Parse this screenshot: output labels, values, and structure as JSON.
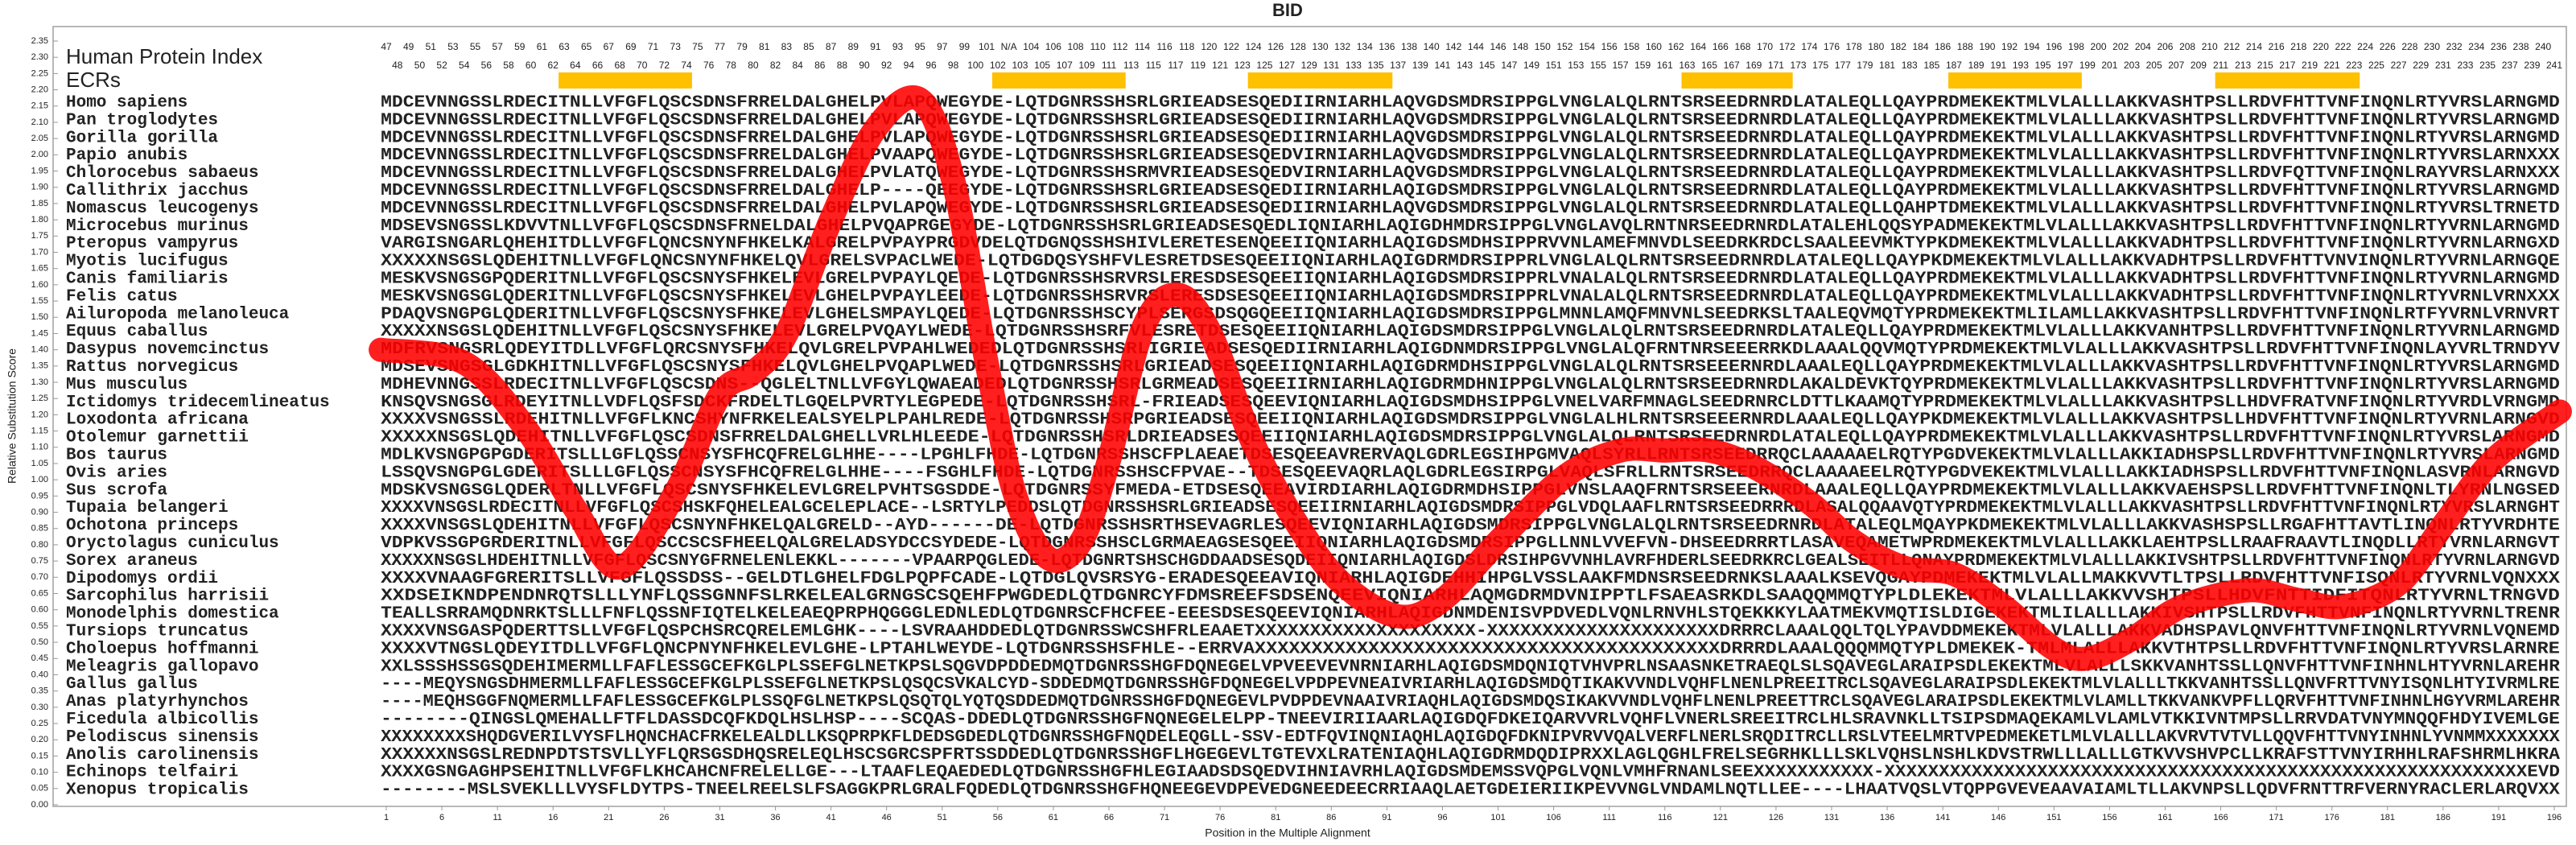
{
  "chart_data": {
    "type": "line",
    "title": "BID",
    "xlabel": "Position in the Multiple Alignment",
    "ylabel": "Relative Substitution Score",
    "xlim": [
      1,
      196
    ],
    "ylim": [
      0,
      2.35
    ],
    "xticks": [
      1,
      6,
      11,
      16,
      21,
      26,
      31,
      36,
      41,
      46,
      51,
      56,
      61,
      66,
      71,
      76,
      81,
      86,
      91,
      96,
      101,
      106,
      111,
      116,
      121,
      126,
      131,
      136,
      141,
      146,
      151,
      156,
      161,
      166,
      171,
      176,
      181,
      186,
      191,
      196
    ],
    "yticks": [
      {
        "value": 0,
        "label": "0.00"
      },
      {
        "value": 0.05,
        "label": "0.05"
      },
      {
        "value": 0.1,
        "label": "0.10"
      },
      {
        "value": 0.15,
        "label": "0.15"
      },
      {
        "value": 0.2,
        "label": "0.20"
      },
      {
        "value": 0.25,
        "label": "0.25"
      },
      {
        "value": 0.3,
        "label": "0.30"
      },
      {
        "value": 0.35,
        "label": "0.35"
      },
      {
        "value": 0.4,
        "label": "0.40"
      },
      {
        "value": 0.45,
        "label": "0.45"
      },
      {
        "value": 0.5,
        "label": "0.50"
      },
      {
        "value": 0.55,
        "label": "0.55"
      },
      {
        "value": 0.6,
        "label": "0.60"
      },
      {
        "value": 0.65,
        "label": "0.65"
      },
      {
        "value": 0.7,
        "label": "0.70"
      },
      {
        "value": 0.75,
        "label": "0.75"
      },
      {
        "value": 0.8,
        "label": "0.80"
      },
      {
        "value": 0.85,
        "label": "0.85"
      },
      {
        "value": 0.9,
        "label": "0.90"
      },
      {
        "value": 0.95,
        "label": "0.95"
      },
      {
        "value": 1,
        "label": "1.00"
      },
      {
        "value": 1.05,
        "label": "1.05"
      },
      {
        "value": 1.1,
        "label": "1.10"
      },
      {
        "value": 1.15,
        "label": "1.15"
      },
      {
        "value": 1.2,
        "label": "1.20"
      },
      {
        "value": 1.25,
        "label": "1.25"
      },
      {
        "value": 1.3,
        "label": "1.30"
      },
      {
        "value": 1.35,
        "label": "1.35"
      },
      {
        "value": 1.4,
        "label": "1.40"
      },
      {
        "value": 1.45,
        "label": "1.45"
      },
      {
        "value": 1.5,
        "label": "1.50"
      },
      {
        "value": 1.55,
        "label": "1.55"
      },
      {
        "value": 1.6,
        "label": "1.60"
      },
      {
        "value": 1.65,
        "label": "1.65"
      },
      {
        "value": 1.7,
        "label": "1.70"
      },
      {
        "value": 1.75,
        "label": "1.75"
      },
      {
        "value": 1.8,
        "label": "1.80"
      },
      {
        "value": 1.85,
        "label": "1.85"
      },
      {
        "value": 1.9,
        "label": "1.90"
      },
      {
        "value": 1.95,
        "label": "1.95"
      },
      {
        "value": 2,
        "label": "2.00"
      },
      {
        "value": 2.05,
        "label": "2.05"
      },
      {
        "value": 2.1,
        "label": "2.10"
      },
      {
        "value": 2.15,
        "label": "2.15"
      },
      {
        "value": 2.2,
        "label": "2.20"
      },
      {
        "value": 2.25,
        "label": "2.25"
      },
      {
        "value": 2.3,
        "label": "2.30"
      },
      {
        "value": 2.35,
        "label": "2.35"
      }
    ],
    "x": [
      0.5,
      8,
      13.5,
      18,
      22,
      27,
      31,
      34,
      37,
      41,
      45,
      49,
      52,
      55,
      57.5,
      60.5,
      63.5,
      66,
      69,
      72,
      75,
      79,
      83,
      87,
      92,
      96,
      101,
      107,
      112,
      116,
      120,
      124,
      129,
      133,
      137.5,
      142,
      146.5,
      151,
      154,
      158,
      162.5,
      168.5,
      173,
      177,
      182,
      186,
      190.5,
      196.5
    ],
    "series": [
      {
        "color": "#ff0000",
        "values": [
          1.4,
          1.36,
          1.16,
          0.91,
          0.73,
          0.96,
          1.26,
          1.33,
          1.45,
          1.8,
          2.08,
          2.17,
          1.92,
          1.36,
          0.96,
          0.76,
          0.81,
          1.06,
          1.46,
          1.57,
          1.46,
          1.11,
          0.86,
          0.68,
          0.58,
          0.63,
          0.81,
          1.01,
          1.09,
          1.09,
          1.09,
          1.04,
          0.93,
          0.81,
          0.73,
          0.71,
          0.61,
          0.48,
          0.45,
          0.51,
          0.61,
          0.66,
          0.63,
          0.61,
          0.68,
          0.86,
          1.06,
          1.21
        ]
      }
    ],
    "index_label": "Human Protein Index",
    "human_index": [
      47,
      48,
      49,
      50,
      51,
      52,
      53,
      54,
      55,
      56,
      57,
      58,
      59,
      60,
      61,
      62,
      63,
      64,
      65,
      66,
      67,
      68,
      69,
      70,
      71,
      72,
      73,
      74,
      75,
      76,
      77,
      78,
      79,
      80,
      81,
      82,
      83,
      84,
      85,
      86,
      87,
      88,
      89,
      90,
      91,
      92,
      93,
      94,
      95,
      96,
      97,
      98,
      99,
      100,
      101,
      102,
      "N/A",
      103,
      104,
      105,
      106,
      107,
      108,
      109,
      110,
      111,
      112,
      113,
      114,
      115,
      116,
      117,
      118,
      119,
      120,
      121,
      122,
      123,
      124,
      125,
      126,
      127,
      128,
      129,
      130,
      131,
      132,
      133,
      134,
      135,
      136,
      137,
      138,
      139,
      140,
      141,
      142,
      143,
      144,
      145,
      146,
      147,
      148,
      149,
      150,
      151,
      152,
      153,
      154,
      155,
      156,
      157,
      158,
      159,
      160,
      161,
      162,
      163,
      164,
      165,
      166,
      167,
      168,
      169,
      170,
      171,
      172,
      173,
      174,
      175,
      176,
      177,
      178,
      179,
      180,
      181,
      182,
      183,
      184,
      185,
      186,
      187,
      188,
      189,
      190,
      191,
      192,
      193,
      194,
      195,
      196,
      197,
      198,
      199,
      200,
      201,
      202,
      203,
      204,
      205,
      206,
      207,
      208,
      209,
      210,
      211,
      212,
      213,
      214,
      215,
      216,
      217,
      218,
      219,
      220,
      221,
      222,
      223,
      224,
      225,
      226,
      227,
      228,
      229,
      230,
      231,
      232,
      233,
      234,
      235,
      236,
      237,
      238,
      239,
      240,
      241
    ],
    "ecr_label": "ECRs",
    "ecr_color": "#ffc000",
    "ecrs": [
      [
        17,
        28
      ],
      [
        56,
        67
      ],
      [
        79,
        91
      ],
      [
        118,
        127
      ],
      [
        142,
        153
      ],
      [
        166,
        178
      ]
    ],
    "sequence_color": "#27509a",
    "alignment": [
      {
        "species": "Homo sapiens",
        "sequence": "MDCEVNNGSSLRDECITNLLVFGFLQSCSDNSFRRELDALGHELPVLAPQWEGYDE-LQTDGNRSSHSRLGRIEADSESQEDIIRNIARHLAQVGDSMDRSIPPGLVNGLALQLRNTSRSEEDRNRDLATALEQLLQAYPRDMEKEKTMLVLALLLAKKVASHTPSLLRDVFHTTVNFINQNLRTYVRSLARNGMD"
      },
      {
        "species": "Pan troglodytes",
        "sequence": "MDCEVNNGSSLRDECITNLLVFGFLQSCSDNSFRRELDALGHELPVLAPQWEGYDE-LQTDGNRSSHSRLGRIEADSESQEDIIRNIARHLAQVGDSMDRSIPPGLVNGLALQLRNTSRSEEDRNRDLATALEQLLQAYPRDMEKEKTMLVLALLLAKKVASHTPSLLRDVFHTTVNFINQNLRTYVRSLARNGMD"
      },
      {
        "species": "Gorilla gorilla",
        "sequence": "MDCEVNNGSSLRDECITNLLVFGFLQSCSDNSFRRELDALGHELPVLAPQWEGYDE-LQTDGNRSSHSRLGRIEADSESQEDIIRNIARHLAQVGDSMDRSIPPGLVNGLALQLRNTSRSEEDRNRDLATALEQLLQAYPRDMEKEKTMLVLALLLAKKVASHTPSLLRDVFHTTVNFINQNLRTYVRSLARNGMD"
      },
      {
        "species": "Papio anubis",
        "sequence": "MDCEVNNGSSLRDECITNLLVFGFLQSCSDNSFRRELDALGHELPVAAPQWEGYDE-LQTDGNRSSHSRLGRIEADSESQEDVIRNIARHLAQVGDSMDRSIPPGLVNGLALQLRNTSRSEEDRNRDLATALEQLLQAYPRDMEKEKTMLVLALLLAKKVASHTPSLLRDVFHTTVNFINQNLRTYVRSLARNXXX"
      },
      {
        "species": "Chlorocebus sabaeus",
        "sequence": "MDCEVNNGSSLRDECITNLLVFGFLQSCSDNSFRRELDALGHELPVLATQWEGYDE-LQTDGNRSSHSRMVRIEADSESQEDVIRNIARHLAQVGDSMDRSIPPGLVNGLALQLRNTSRSEEDRNRDLATALEQLLQAYPRDMEKEKTMLVLALLLAKKVASHTPSLLRDVFQTTVNFINQNLRAYVRSLARNXXX"
      },
      {
        "species": "Callithrix jacchus",
        "sequence": "MDCEVNNGSSLRDECITNLLVFGFLQSCSDNSFRRELDALGHELP----QEEGYDE-LQTDGNRSSHSRLGRIEADSESQEDIIRNIARHLAQIGDSMDRSIPPGLVNGLALQLRNTSRSEEDRNRDLATALEQLLQAYPRDMEKEKTMLVLALLLAKKVASHTPSLLRDVFHTTVNFINQNLRTYVRSLARNGMD"
      },
      {
        "species": "Nomascus leucogenys",
        "sequence": "MDCEVNNGSSLRDECITNLLVFGFLQSCSDNSFRRELDALGHELPVLAPQWEGYDE-LQTDGNRSSHSRLGRIEADSESQEDIIRNIARHLAQVGDSMDRSIPPGLVNGLALQLRNTSRSEEDRNRDLATALEQLLQAHPTDMEKEKTMLVLALLLAKKVASHTPSLLRDVFHTTVNFINQNLRTYVRSLTRNETD"
      },
      {
        "species": "Microcebus murinus",
        "sequence": "MDSEVSNGSSLKDVVTNLLVFGFLQSCSDNSFRNELDALGHELPVQAPRGEGYDE-LQTDGNRSSHSRLGRIEADSESQEDLIQNIARHLAQIGDHMDRSIPPGLVNGLAVQLRNTNRSEEDRNRDLATALEHLQQSYPADMEKEKTMLVLALLLAKKVASHTPSLLRDVFHTTVNFINQNLRTYVRNLARNGMD"
      },
      {
        "species": "Pteropus vampyrus",
        "sequence": "VARGISNGARLQHEHITDLLVFGFLQNCSNYNFHKELKALGRELPVPAYPRGDVDELQTDGNQSSHSHIVLERETESENQEEIIQNIARHLAQIGDSMDHSIPPRVVNLAMEFMNVDLSEEDRKRDCLSAALEEVMKTYPKDMEKEKTMLVLALLLAKKVADHTPSLLRDVFHTTVNFINQNLRTYVRNLARNGXD"
      },
      {
        "species": "Myotis lucifugus",
        "sequence": "XXXXXNSGSLQDEHITNLLVFGFLQNCSNYNFHKELQVLGRELSVPACLWEDE-LQTDGDQSYSHFVLESRETDSESQEEIIQNIARHLAQIGDRMDRSIPPRLVNGLALQLRNTSRSEEDRNRDLATALEQLLQAYPKDMEKEKTMLVLALLLAKKVADHTPSLLRDVFHTTVNVINQNLRTYVRNLARNGQE"
      },
      {
        "species": "Canis familiaris",
        "sequence": "MESKVSNGSGPQDERITNLLVFGFLQSCSNYSFHKELEVLGRELPVPAYLQEDE-LQTDGNRSSHSRVRSLERESDSESQEEIIQNIARHLAQIGDSMDRSIPPRLVNALALQLRNTSRSEEDRNRDLATALEQLLQAYPRDMEKEKTMLVLALLLAKKVADHTPSLLRDVFHTTVNFINQNLRTYVRNLARNGMD"
      },
      {
        "species": "Felis catus",
        "sequence": "MESKVSNGSGLQDERITNLLVFGFLQSCSNYSFHKELEVLGHELPVPAYLEEDE-LQTDGNRSSHSRVRSLERESDSESQEEIIQNIARHLAQIGDSMDRSIPPRLVNALALQLRNTSRSEEDRNRDLATALEQLLQAYPRDMEKEKTMLVLALLLAKKVADHTPSLLRDVFHTTVNFINQNLRTYVRNLVRNXXX"
      },
      {
        "species": "Ailuropoda melanoleuca",
        "sequence": "PDAQVSNGPGLQDERITNLLVFGFLQSCSNYSFHKELEVLGHELSMPAYLQEDE-LQTDGNRSSHSCYPLSERGSDSQGQEEIIQNIARHLAQIGDSMDRSIPPGLMNNLAMQFMNVNLSEEDRKSLTAALEQVMQTYPRDMEKEKTMLILAMLLAKKVASHTPSLLRDVFHTTVNFINQNLRTFYVRNLVRNVRT"
      },
      {
        "species": "Equus caballus",
        "sequence": "XXXXXNSGSLQDEHITNLLVFGFLQSCSNYSFHKELEVLGRELPVQAYLWEDE-LQTDGNRSSHSRFVLESRETDSESQEEIIQNIARHLAQIGDSMDRSIPPGLVNGLALQLRNTSRSEEDRNRDLATALEQLLQAYPRDMEKEKTMLVLALLLAKKVANHTPSLLRDVFHTTVNFINQNLRTYVRNLARNGMD"
      },
      {
        "species": "Dasypus novemcinctus",
        "sequence": "MDFRVSNGSRLQDEYITDLLVFGFLQRCSNYSFHKELQVLGRELPVPAHLWEDEDLQTDGNRSSHSRLIGRIEADSESQEDIIRNIARHLAQIGDNMDRSIPPGLVNGLALQFRNTNRSEEERRKDLAAALQQVMQTYPRDMEKEKTMLVLALLLAKKVASHTPSLLRDVFHTTVNFINQNLAYVRLTRNDYV"
      },
      {
        "species": "Rattus norvegicus",
        "sequence": "MDSEVSNGSGLGDKHITNLLVFGFLQSCSNYSFHKELQVLGHELPVQAPLWEDE-LQTDGNRSSHSRLGRIEADSESQEEIIQNIARHLAQIGDRMDHSIPPGLVNGLALQLRNTSRSEEERNRDLAAALEQLLQAYPRDMEKEKTMLVLALLLAKKVASHTPSLLRDVFHTTVNFINQNLRTYVRSLARNGMD"
      },
      {
        "species": "Mus musculus",
        "sequence": "MDHEVNNGSSLRDECITNLLVFGFLQSCSDNS--QGLELTNLLVFGYLQWAEADEDLQTDGNRSSHSRLGRMEADSESQEEIIRNIARHLAQIGDRMDHNIPPGLVNGLALQLRNTSRSEEDRNRDLAKALDEVKTQYPRDMEKEKTMLVLALLLAKKVASHTPSLLRDVFHTTVNFINQNLRTYVRSLARNGMD"
      },
      {
        "species": "Ictidomys tridecemlineatus",
        "sequence": "KNSQVSNGSGLRDEYITNLLVDFLQSFSDCKFRDELTLGQELPVRTYLEGPEDE-LQTDGNRSSHSRL-FRIEADSESQEEVIQNIARHLAQIGDSMDHSIPPGLVNELVARFMNAGLSEEDRNRCLDTTLKAAMQTYPRDMEKEKTMLVLALLLAKKVASHTPSLLHDVFRATVNFINQNLRTYVRDLVRNGMD"
      },
      {
        "species": "Loxodonta africana",
        "sequence": "XXXXVSNGSSLRDEHITNLLVFGFLKNCSHYNFRKELEALSYELPLPAHLREDE-LQTDGNRSSHSRPGRIEADSESQEEIIQNIARHLAQIGDSMDRSIPPGLVNGLALHLRNTSRSEEERNRDLAAALEQLLQAYPKDMEKEKTMLVLALLLAKKVASHTPSLLHDVFHTTVNFINQNLRTYVRNLARNGVD"
      },
      {
        "species": "Otolemur garnettii",
        "sequence": "XXXXXNSGSLQDEHITNLLVFGFLQSCSDNSFRRELDALGHELLVRLHLEEDE-LQTDGNRSSHSRLDRIEADSESQEEIIQNIARHLAQIGDSMDRSIPPGLVNGLALQLRNTSRSEEDRNRDLATALEQLLQAYPRDMEKEKTMLVLALLLAKKVASHTPSLLRDVFHTTVNFINQNLRTYVRSLARNGMD"
      },
      {
        "species": "Bos taurus",
        "sequence": "MDLKVSNGPGPGDERITSLLLGFLQSSCNSYSFHCQFRELGLHHE----LPGHLFHDE-LQTDGNRSSHSCFPLAEAETDSESQEEAVRERVAQLGDRLEGSIHPGMVAQLSYRLLRNTSRSEEDRRQCLAAAAAELRQTYPGDVEKEKTMLVLALLLAKKIADHSPSLLRDVFHTTVNFINQNLRTYVRSLARNGMD"
      },
      {
        "species": "Ovis aries",
        "sequence": "LSSQVSNGPGLGDERITSLLLGFLQSSCNSYSFHCQFRELGLHHE----FSGHLFHDE-LQTDGNRSSHSCFPVAE--TDSESQEEVAQRLAQLGDRLEGSIRPGLVAQLSFRLLRNTSRSEEDRRQCLAAAAEELRQTYPGDVEKEKTMLVLALLLAKKIADHSPSLLRDVFHTTVNFINQNLASVRNLARNGVD"
      },
      {
        "species": "Sus scrofa",
        "sequence": "MDSKVSNGSGLQDERLTNLLVFGFLQSCSNYSFHKELEVLGRELPVHTSGSDDE-LQTDGNRSSYFMEDA-ETDSESQEEAVIRDIARHLAQIGDRMDHSIPPGLVNSLAAQFRNTSRSEEERNRDLAAALEQLLQAYPRDMEKEKTMLVLALLLAKKVAEHSPSLLRDVFHTTVNFINQNLTLYRNLNGSED"
      },
      {
        "species": "Tupaia belangeri",
        "sequence": "XXXXVNSGSLRDECITNLLVFGFLQSCSHSKFQHELEALGCELEPLACE--LSRTYLPEDDSLQTDGNRSSHSRLGRIEADSESQEEIIRNIARHLAQIGDSMDRSIPPGLVDQLAAFLRNTSRSEEDRRRDLASALQQAAVQTYPRDMEKEKTMLVLALLLAKKVASHTPSLLRDVFHTTVNFINQNLRTYVRSLARNGHT"
      },
      {
        "species": "Ochotona princeps",
        "sequence": "XXXXVNSGSLQDEHITNLLVFGFLQSCSNYNFHKELQALGRELD--AYD------DE-LQTDGNRSSHSRTHSEVAGRLESQEEVIQNIARHLAQIGDSMDRSIPPGLVNGLALQLRNTSRSEEDRNRDLATALEQLMQAYPKDMEKEKTMLVLALLLAKKVASHSPSLLRGAFHTTAVTLINQNLRTYVRDHTE"
      },
      {
        "species": "Oryctolagus cuniculus",
        "sequence": "VDPKVSSGPGRDERITNLLVFGFLQSCCSCSFHEELQALGRELADSYDCCSYDEDE-LQTDGNRSSHSCLGRMAEAGSESQEEIIQNIARHLAQIGDSMDRSIPPGLLNNLVVEFVN-DHSEEDRRRTLASAVEQAMETWPRDMEKEKTMLVLALLLAKKLAEHTPSLLRAAFRAAVTLINQDLLRTYVRNLARNGVT"
      },
      {
        "species": "Sorex araneus",
        "sequence": "XXXXXNSGSLHDEHITNLLVFGFLQSCSNYGFRNELENLEKKL-------VPAARPQGLEDE-LQTDGNRTSHSCHGDDAADSESQDEIIQNIARHLAQIGDSLDRSIHPGVVNHLAVRFHDERLSEEDRKRCLGEALSEITLLQNAYPRDMEKEKTMLVLALLLAKKIVSHTPSLLRDVFHTTVNFINQNLRTYVRNLARNGVD"
      },
      {
        "species": "Dipodomys ordii",
        "sequence": "XXXXVNAAGFGRERITSLLVFGFLQSSDSS--GELDTLGHELFDGLPQPFCADE-LQTDGLQVSRSYG-ERADESQEEAVIQNIARHLAQIGDEHHIHPGLVSSLAAKFMDNSRSEEDRNKSLAAALKSEVQGAYPDMEKEKTMLVLALLMAKKVVTLTPSLLRDVFHTTVNFISQNLRTYVRNLVQNXXX"
      },
      {
        "species": "Sarcophilus harrisii",
        "sequence": "XXDSEIKNDPENDNRQTSLLLYNFLQSSGNNFSLRKELEALGRNGSCSQEHFPWGDEDLQTDGNRCYFDMSREEFSDSENQEEVIQNIARHLAQMGDRMDVNIPPTLFSAEASRKDLSAAQQMMQTYPLDLEKEKTMLVLALLLAKKVVSHTPSLLHDVFNTTIDFITQNLRTYVRNLTRNGVD"
      },
      {
        "species": "Monodelphis domestica",
        "sequence": "TEALLSRRAMQDNRKTSLLLFNFLQSSNFIQTELKELEAEQPRPHQGGGLEDNLEDLQTDGNRSCFHCFEE-EEESDSESQEEVIQNIARHLAQIGDNMDENISVPDVEDLVQNLRNVHLSTQEKKKYLAATMEKVMQTISLDIGEKEKTMLILALLLAKKIVSHTPSLLRDVFHTTVNFINQNLRTYVRNLTRENR"
      },
      {
        "species": "Tursiops truncatus",
        "sequence": "XXXXVNSGASPQDERTTSLLVFGFLQSPCHSRCQRELEMLGHK----LSVRAAHDDEDLQTDGNRSSWCSHFRLEAAETXXXXXXXXXXXXXXXXXXXX-XXXXXXXXXXXXXXXXXXXXXDRRRCLAAALQQLTQLYPAVDDMEKEKTMLVLALLLAKKVADHSPAVLQNVFHTTVNFINQNLRTYVRNLVQNEMD"
      },
      {
        "species": "Choloepus hoffmanni",
        "sequence": "XXXXVTNGSLQDEYITDLLVFGFLQNCPNYNFHKELEVLGHE-LPTAHLWEYDE-LQTDGNRSSHSFHLE--ERRVAXXXXXXXXXXXXXXXXXXXXXXXXXXXXXXXXXXXXXXXXXDRRRDLAAALQQQMMQTYPLDMEKEK-TMLMLALLLAKKVTHTPSLLRDVFHTTVNFINQNLRTYVRSLARNRE"
      },
      {
        "species": "Meleagris gallopavo",
        "sequence": "XXLSSSHSSGSQDEHIMERMLLFAFLESSGCEFKGLPLSSEFGLNETKPSLSQGVDPDDEDMQTDGNRSSHGFDQNEGELVPVEEVEVNRNIARHLAQIGDSMDQNIQTVHVPRLNSAASNKETRAEQLSLSQAVEGLARAIPSDLEKEKTMLVLALLLSKKVANHTSSLLQNVFHTTVNFINHNLHTYVRNLAREHR"
      },
      {
        "species": "Gallus gallus",
        "sequence": "----MEQYSNGSDHMERMLLFAFLESSGCEFKGLPLSSEFGLNETKPSLQSQCSVKALCYD-SDDEDMQTDGNRSSHGFDQNEGELVPDPEVNEAIVRIARHLAQIGDSMDQTIKAKVVNDLVQHFLNENLPREEITRCLSQAVEGLARAIPSDLEKEKTMLVLALLLTKKVANHTSSLLQNVFRTTVNYISQNLHTYIVRMLRE"
      },
      {
        "species": "Anas platyrhynchos",
        "sequence": "----MEQHSGGFNQMERMLLFAFLESSGCEFKGLPLSSQFGLNETKPSLQSQTQLYQTQSDDEDMQTDGNRSSHGFDQNEGEVLPVDPDEVNAAIVRIAQHLAQIGDSMDQSIKAKVVNDLVQHFLNENLPREETTRCLSQAVEGLARAIPSDLEKEKTMLVLAMLLTKKVANKVPFLLQRVFHTTVNFINHNLHGYVRMLAREHR"
      },
      {
        "species": "Ficedula albicollis",
        "sequence": "--------QINGSLQMEHALLFTFLDASSDCQFKDQLHSLHSP----SCQAS-DDEDLQTDGNRSSHGFNQNEGELELPP-TNEEVIRIIAARLAQIGDQFDKEIQARVVRLVQHFLVNERLSREEITRCLHLSRAVNKLLTSIPSDMAQEKAMLVLAMLVTKKIVNTMPSLLRRVDATVNYMNQQFHDYIVEMLGE"
      },
      {
        "species": "Pelodiscus sinensis",
        "sequence": "XXXXXXXXSHQDGVERILVYSFLHQNCHACFRKELEALDLLKSQPRPKFLDEDSGDEDLQTDGNRSSHGFNQDELEQGLL-SSV-EDTFQVINQNIAQHLAQIGDQFDKNIPVRVVQALVERFLNERLSRQDITRCLLRSLVTEELMRTVPEDMEKETLMLVLALLLAKVRVTVTVLLQQVFHTTVNYINHNLYVNMMXXXXXXX"
      },
      {
        "species": "Anolis carolinensis",
        "sequence": "XXXXXXNSGSLREDNPDTSTSVLLYFLQRSGSDHQSRELEQLHSCSGRCSPFRTSSDDEDLQTDGNRSSHGFLHGEGEVLTGTEVXLRATENIAQHLAQIGDRMDQDIPRXXLAGLQGHLFRELSEGRHKLLLSKLVQHSLNSHLKDVSTRWLLLALLLGTKVVSHVPCLLKRAFSTTVNYIRHHLRAFSHRMLHKRA"
      },
      {
        "species": "Echinops telfairi",
        "sequence": "XXXXGSNGAGHPSEHITNLLVFGFLKHCAHCNFRELELLGE---LTAAFLEQAEDEDLQTDGNRSSHGFHLEGIAADSDSQEDVIHNIAVRHLAQIGDSMDEMSSVQPGLVQNLVMHFRNANLSEEXXXXXXXXXXX-XXXXXXXXXXXXXXXXXXXXXXXXXXXXXXXXXXXXXXXXXXXXXXXXXXXXXXXXXXXEVD"
      },
      {
        "species": "Xenopus tropicalis",
        "sequence": "--------MSLSVEKLLLVYSFLDYTPS-TNEELREELSLFSAGGKPRLGRALFQDEDLQTDGNRSSHGFHQNEEGEVDPEVEDGNEEDEECRRIAAQLAETGDEIERIIKPEVVNGLVNDAMLNQTLLEE----LHAATVQSLVTQPPGVEVEAAVAIAMLTLLAKVNPSLLQDVFRNTTRFVERNYRACLERLARQVXX"
      }
    ]
  }
}
